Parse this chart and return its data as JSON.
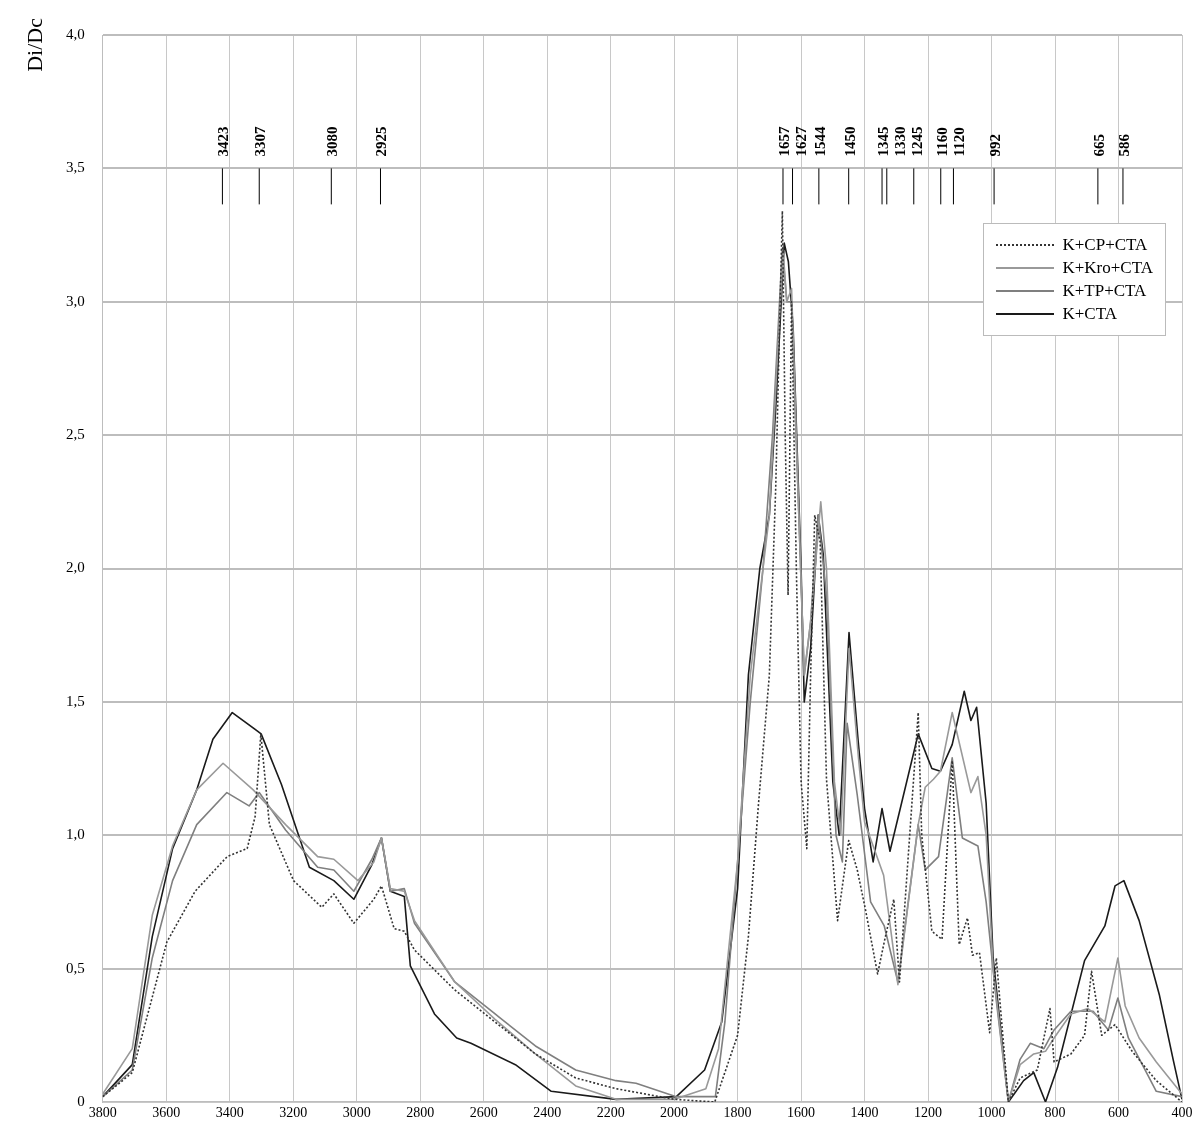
{
  "chart_data": {
    "type": "line",
    "ylabel": "Di/Dc",
    "xlim": [
      3800,
      400
    ],
    "xticks": [
      3800,
      3600,
      3400,
      3200,
      3000,
      2800,
      2600,
      2400,
      2200,
      2000,
      1800,
      1600,
      1400,
      1200,
      1000,
      800,
      600,
      400
    ],
    "ylim": [
      0,
      4
    ],
    "yticks": [
      0,
      {
        "value": 0.5,
        "label": "0,5"
      },
      {
        "value": 1,
        "label": "1,0"
      },
      {
        "value": 1.5,
        "label": "1,5"
      },
      {
        "value": 2,
        "label": "2,0"
      },
      {
        "value": 2.5,
        "label": "2,5"
      },
      {
        "value": 3,
        "label": "3,0"
      },
      {
        "value": 3.5,
        "label": "3,5"
      },
      {
        "value": 4,
        "label": "4,0"
      }
    ],
    "grid": true,
    "legend": "top right",
    "marker": "none",
    "ref_lines": [
      {
        "axis": "x",
        "value": 3423,
        "label": "3423"
      },
      {
        "axis": "x",
        "value": 3307,
        "label": "3307"
      },
      {
        "axis": "x",
        "value": 3080,
        "label": "3080"
      },
      {
        "axis": "x",
        "value": 2925,
        "label": "2925"
      },
      {
        "axis": "x",
        "value": 1657,
        "label": "1657"
      },
      {
        "axis": "x",
        "value": 1627,
        "label": "1627"
      },
      {
        "axis": "x",
        "value": 1544,
        "label": "1544"
      },
      {
        "axis": "x",
        "value": 1450,
        "label": "1450"
      },
      {
        "axis": "x",
        "value": 1345,
        "label": "1345"
      },
      {
        "axis": "x",
        "value": 1330,
        "label": "1330"
      },
      {
        "axis": "x",
        "value": 1245,
        "label": "1245"
      },
      {
        "axis": "x",
        "value": 1160,
        "label": "1160"
      },
      {
        "axis": "x",
        "value": 1120,
        "label": "1120"
      },
      {
        "axis": "x",
        "value": 992,
        "label": "992"
      },
      {
        "axis": "x",
        "value": 665,
        "label": "665"
      },
      {
        "axis": "x",
        "value": 586,
        "label": "586"
      }
    ],
    "series": [
      {
        "name": "K+CP+CTA",
        "color": "#333333",
        "line_style": "dotted",
        "x": [
          3800,
          3707,
          3598,
          3509,
          3408,
          3345,
          3320,
          3302,
          3275,
          3199,
          3110,
          3072,
          3009,
          2946,
          2922,
          2882,
          2850,
          2818,
          2691,
          2564,
          2437,
          2310,
          2183,
          1999,
          1872,
          1800,
          1766,
          1734,
          1700,
          1680,
          1659,
          1650,
          1641,
          1630,
          1615,
          1600,
          1582,
          1570,
          1557,
          1540,
          1520,
          1485,
          1450,
          1423,
          1397,
          1359,
          1338,
          1308,
          1290,
          1231,
          1220,
          1188,
          1156,
          1124,
          1102,
          1076,
          1060,
          1038,
          1006,
          985,
          947,
          910,
          856,
          816,
          803,
          750,
          707,
          685,
          653,
          611,
          557,
          481,
          400
        ],
        "values": [
          0.02,
          0.11,
          0.6,
          0.79,
          0.92,
          0.95,
          1.07,
          1.38,
          1.04,
          0.83,
          0.73,
          0.78,
          0.67,
          0.76,
          0.81,
          0.65,
          0.64,
          0.57,
          0.42,
          0.3,
          0.18,
          0.09,
          0.05,
          0.01,
          0,
          0.25,
          0.62,
          1.12,
          1.6,
          2.3,
          3.34,
          2.5,
          1.9,
          3.0,
          2.0,
          1.2,
          0.95,
          1.6,
          2.2,
          2.1,
          1.21,
          0.68,
          0.98,
          0.87,
          0.72,
          0.48,
          0.6,
          0.76,
          0.45,
          1.46,
          1.0,
          0.64,
          0.61,
          1.28,
          0.59,
          0.69,
          0.55,
          0.56,
          0.26,
          0.54,
          0,
          0.09,
          0.12,
          0.35,
          0.15,
          0.18,
          0.25,
          0.49,
          0.25,
          0.29,
          0.19,
          0.08,
          0
        ]
      },
      {
        "name": "K+Kro+CTA",
        "color": "#999999",
        "x": [
          3800,
          3707,
          3644,
          3580,
          3504,
          3421,
          3326,
          3224,
          3123,
          3072,
          2996,
          2946,
          2922,
          2894,
          2850,
          2818,
          2691,
          2564,
          2437,
          2310,
          2183,
          1999,
          1900,
          1860,
          1800,
          1760,
          1720,
          1700,
          1670,
          1656,
          1645,
          1630,
          1610,
          1590,
          1570,
          1538,
          1520,
          1495,
          1475,
          1449,
          1420,
          1400,
          1340,
          1295,
          1231,
          1209,
          1183,
          1161,
          1124,
          1065,
          1043,
          1017,
          995,
          947,
          910,
          867,
          830,
          803,
          750,
          696,
          643,
          602,
          579,
          535,
          481,
          400
        ],
        "values": [
          0.03,
          0.2,
          0.7,
          0.96,
          1.17,
          1.27,
          1.17,
          1.04,
          0.92,
          0.91,
          0.83,
          0.9,
          0.99,
          0.8,
          0.79,
          0.68,
          0.45,
          0.31,
          0.18,
          0.06,
          0.01,
          0.01,
          0.05,
          0.2,
          0.9,
          1.6,
          2.0,
          2.2,
          2.9,
          3.18,
          3.0,
          3.05,
          2.3,
          1.6,
          1.8,
          2.25,
          2.0,
          1.2,
          1.0,
          1.7,
          1.3,
          1.05,
          0.85,
          0.44,
          1.04,
          1.18,
          1.21,
          1.24,
          1.46,
          1.16,
          1.22,
          1.0,
          0.5,
          0,
          0.14,
          0.18,
          0.19,
          0.24,
          0.33,
          0.35,
          0.3,
          0.54,
          0.36,
          0.24,
          0.15,
          0.03
        ]
      },
      {
        "name": "K+TP+CTA",
        "color": "#7f7f7f",
        "x": [
          3800,
          3707,
          3644,
          3580,
          3504,
          3409,
          3339,
          3307,
          3224,
          3123,
          3072,
          3009,
          2952,
          2922,
          2894,
          2850,
          2818,
          2691,
          2564,
          2437,
          2310,
          2183,
          2120,
          1993,
          1870,
          1840,
          1800,
          1760,
          1720,
          1690,
          1659,
          1645,
          1630,
          1610,
          1590,
          1570,
          1546,
          1520,
          1490,
          1470,
          1455,
          1423,
          1381,
          1338,
          1295,
          1231,
          1209,
          1167,
          1124,
          1092,
          1043,
          1017,
          985,
          947,
          910,
          878,
          835,
          803,
          750,
          680,
          632,
          602,
          569,
          481,
          400
        ],
        "values": [
          0.02,
          0.12,
          0.54,
          0.83,
          1.04,
          1.16,
          1.11,
          1.16,
          1.02,
          0.88,
          0.87,
          0.79,
          0.91,
          0.99,
          0.79,
          0.8,
          0.67,
          0.45,
          0.33,
          0.21,
          0.12,
          0.08,
          0.07,
          0.02,
          0.02,
          0.3,
          0.9,
          1.5,
          2.0,
          2.5,
          3.2,
          3.0,
          3.0,
          2.3,
          1.6,
          1.8,
          2.2,
          1.9,
          1.0,
          0.9,
          1.42,
          1.15,
          0.75,
          0.66,
          0.45,
          1.04,
          0.87,
          0.92,
          1.29,
          0.99,
          0.96,
          0.75,
          0.38,
          0,
          0.16,
          0.22,
          0.2,
          0.27,
          0.34,
          0.34,
          0.27,
          0.39,
          0.24,
          0.04,
          0.02
        ]
      },
      {
        "name": "K+CTA",
        "color": "#1a1a1a",
        "x": [
          3800,
          3707,
          3644,
          3580,
          3504,
          3453,
          3392,
          3301,
          3237,
          3149,
          3072,
          3009,
          2952,
          2922,
          2894,
          2850,
          2831,
          2755,
          2685,
          2640,
          2500,
          2387,
          2183,
          1993,
          1904,
          1850,
          1800,
          1766,
          1730,
          1700,
          1680,
          1653,
          1640,
          1625,
          1600,
          1590,
          1570,
          1546,
          1530,
          1500,
          1480,
          1449,
          1420,
          1400,
          1373,
          1345,
          1320,
          1231,
          1188,
          1161,
          1124,
          1086,
          1065,
          1047,
          1017,
          995,
          947,
          899,
          867,
          830,
          792,
          707,
          643,
          611,
          583,
          535,
          471,
          428,
          400
        ],
        "values": [
          0.02,
          0.14,
          0.62,
          0.95,
          1.17,
          1.36,
          1.46,
          1.38,
          1.19,
          0.88,
          0.83,
          0.76,
          0.89,
          0.99,
          0.79,
          0.77,
          0.51,
          0.33,
          0.24,
          0.22,
          0.14,
          0.04,
          0.01,
          0.02,
          0.12,
          0.3,
          0.8,
          1.6,
          2.0,
          2.2,
          2.6,
          3.22,
          3.15,
          2.9,
          2.0,
          1.5,
          1.7,
          2.2,
          2.05,
          1.2,
          1.0,
          1.76,
          1.35,
          1.1,
          0.9,
          1.1,
          0.94,
          1.38,
          1.25,
          1.24,
          1.34,
          1.54,
          1.43,
          1.48,
          1.12,
          0.54,
          0,
          0.08,
          0.11,
          0,
          0.13,
          0.53,
          0.66,
          0.81,
          0.83,
          0.68,
          0.4,
          0.16,
          0.01
        ]
      }
    ]
  }
}
